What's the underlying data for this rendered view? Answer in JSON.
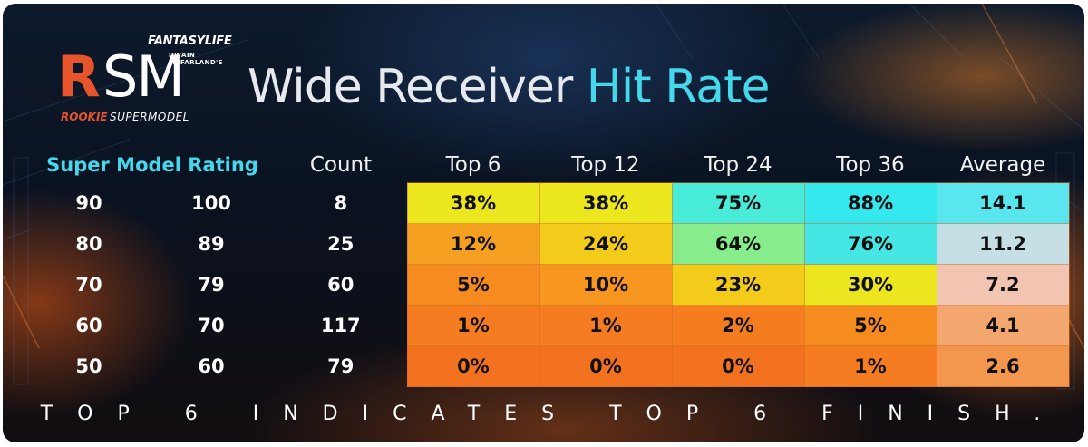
{
  "branding": {
    "brand": "FANTASYLIFE",
    "byline": "DWAIN MCFARLAND'S",
    "logo_r": "R",
    "logo_sm": "SM",
    "logo_rookie": "ROOKIE",
    "logo_supermodel": "SUPERMODEL",
    "accent_color": "#e8542a"
  },
  "title": {
    "part1": "Wide Receiver",
    "part2": "Hit Rate",
    "accent_color": "#45d7ec"
  },
  "table": {
    "headers": {
      "rating": "Super Model Rating",
      "count": "Count",
      "top6": "Top 6",
      "top12": "Top 12",
      "top24": "Top 24",
      "top36": "Top 36",
      "average": "Average"
    },
    "rows": [
      {
        "low": "90",
        "high": "100",
        "count": "8",
        "top6": "38%",
        "top12": "38%",
        "top24": "75%",
        "top36": "88%",
        "average": "14.1"
      },
      {
        "low": "80",
        "high": "89",
        "count": "25",
        "top6": "12%",
        "top12": "24%",
        "top24": "64%",
        "top36": "76%",
        "average": "11.2"
      },
      {
        "low": "70",
        "high": "79",
        "count": "60",
        "top6": "5%",
        "top12": "10%",
        "top24": "23%",
        "top36": "30%",
        "average": "7.2"
      },
      {
        "low": "60",
        "high": "70",
        "count": "117",
        "top6": "1%",
        "top12": "1%",
        "top24": "2%",
        "top36": "5%",
        "average": "4.1"
      },
      {
        "low": "50",
        "high": "60",
        "count": "79",
        "top6": "0%",
        "top12": "0%",
        "top24": "0%",
        "top36": "1%",
        "average": "2.6"
      }
    ],
    "cell_colors": [
      [
        "#ece61f",
        "#ece61f",
        "#49ecd9",
        "#34e8ed",
        "#5ae6ef"
      ],
      [
        "#f5a021",
        "#f2cb1b",
        "#86ec8c",
        "#45e6e3",
        "#c6dfe4"
      ],
      [
        "#f68b1f",
        "#f7971f",
        "#f2cb1b",
        "#ece61f",
        "#f2c4b2"
      ],
      [
        "#f57c20",
        "#f57c20",
        "#f57d20",
        "#f68b1f",
        "#f3a66e"
      ],
      [
        "#f37220",
        "#f37220",
        "#f37220",
        "#f57c20",
        "#f3964e"
      ]
    ]
  },
  "footer": "TOP 6 INDICATES TOP 6 FINISH."
}
